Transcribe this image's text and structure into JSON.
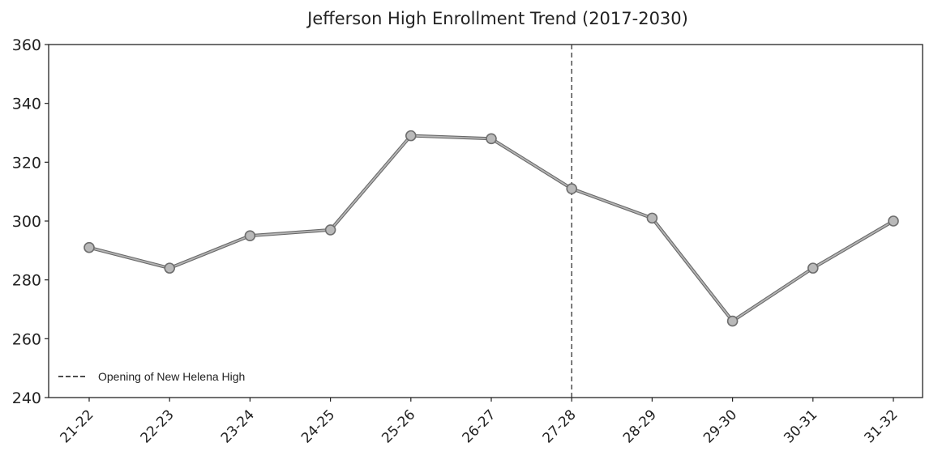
{
  "chart_data": {
    "type": "line",
    "title": "Jefferson High Enrollment Trend (2017-2030)",
    "xlabel": "",
    "ylabel": "",
    "categories": [
      "21-22",
      "22-23",
      "23-24",
      "24-25",
      "25-26",
      "26-27",
      "27-28",
      "28-29",
      "29-30",
      "30-31",
      "31-32"
    ],
    "series": [
      {
        "values": [
          291,
          284,
          295,
          297,
          329,
          328,
          311,
          301,
          266,
          284,
          300
        ]
      }
    ],
    "ylim": [
      240,
      360
    ],
    "yticks": [
      240,
      260,
      280,
      300,
      320,
      340,
      360
    ],
    "grid": false,
    "reference_line": {
      "at_category": "27-28",
      "style": "dashed",
      "label": "Opening of New Helena High"
    },
    "legend": {
      "placement": "bottom-left",
      "entries": [
        "Opening of New Helena High"
      ]
    },
    "colors": {
      "line": "#8a8a8a",
      "marker": "#b9b9b9",
      "marker_edge": "#6e6e6e",
      "axis": "#222222",
      "reference": "#333333"
    }
  }
}
